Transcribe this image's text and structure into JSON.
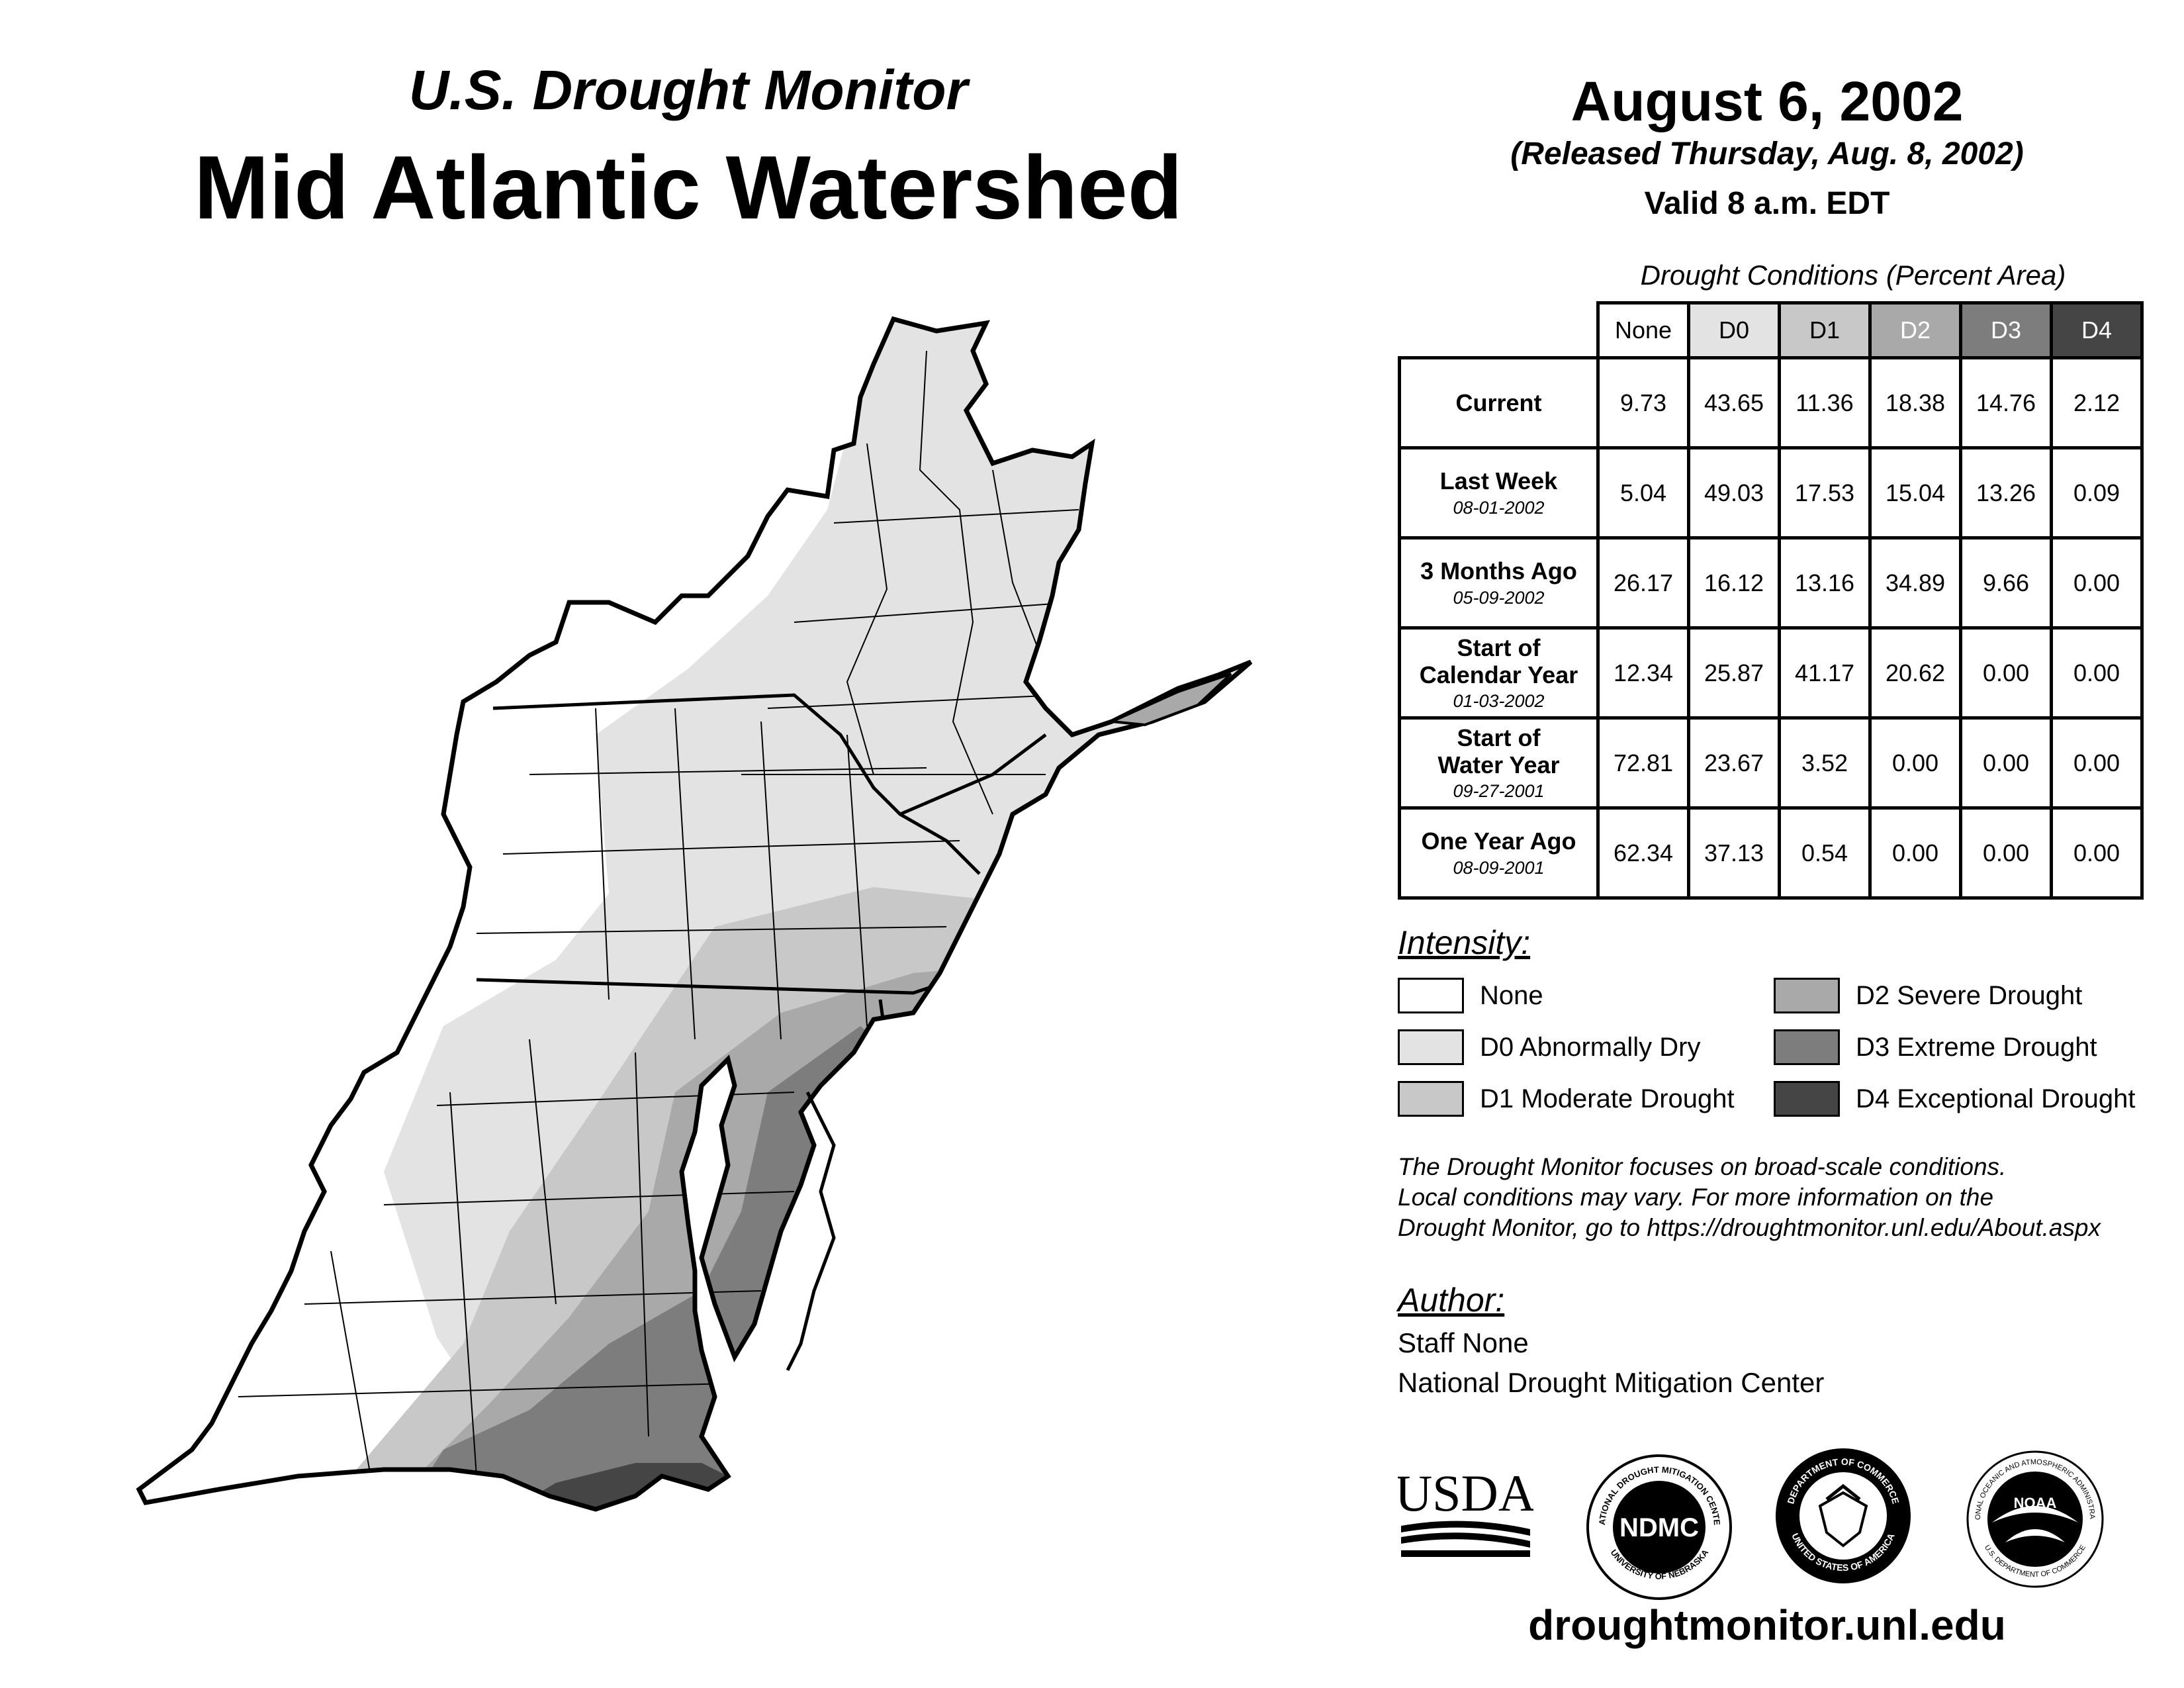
{
  "header": {
    "subtitle": "U.S. Drought Monitor",
    "title": "Mid Atlantic Watershed",
    "date": "August 6, 2002",
    "released": "(Released Thursday, Aug. 8, 2002)",
    "valid": "Valid 8 a.m. EDT"
  },
  "table": {
    "caption": "Drought Conditions (Percent Area)",
    "columns": [
      "None",
      "D0",
      "D1",
      "D2",
      "D3",
      "D4"
    ],
    "rows": [
      {
        "label": "Current",
        "date": "",
        "values": [
          "9.73",
          "43.65",
          "11.36",
          "18.38",
          "14.76",
          "2.12"
        ]
      },
      {
        "label": "Last Week",
        "date": "08-01-2002",
        "values": [
          "5.04",
          "49.03",
          "17.53",
          "15.04",
          "13.26",
          "0.09"
        ]
      },
      {
        "label": "3 Months Ago",
        "date": "05-09-2002",
        "values": [
          "26.17",
          "16.12",
          "13.16",
          "34.89",
          "9.66",
          "0.00"
        ]
      },
      {
        "label": "Start of Calendar Year",
        "date": "01-03-2002",
        "values": [
          "12.34",
          "25.87",
          "41.17",
          "20.62",
          "0.00",
          "0.00"
        ]
      },
      {
        "label": "Start of Water Year",
        "date": "09-27-2001",
        "values": [
          "72.81",
          "23.67",
          "3.52",
          "0.00",
          "0.00",
          "0.00"
        ]
      },
      {
        "label": "One Year Ago",
        "date": "08-09-2001",
        "values": [
          "62.34",
          "37.13",
          "0.54",
          "0.00",
          "0.00",
          "0.00"
        ]
      }
    ]
  },
  "legend": {
    "heading": "Intensity:",
    "items": [
      {
        "label": "None",
        "color": "#ffffff"
      },
      {
        "label": "D0 Abnormally Dry",
        "color": "#e3e3e3"
      },
      {
        "label": "D1 Moderate Drought",
        "color": "#c8c8c8"
      },
      {
        "label": "D2 Severe Drought",
        "color": "#a9a9a9"
      },
      {
        "label": "D3 Extreme Drought",
        "color": "#7d7d7d"
      },
      {
        "label": "D4 Exceptional Drought",
        "color": "#454545"
      }
    ]
  },
  "note": {
    "line1": "The Drought Monitor focuses on broad-scale conditions.",
    "line2": "Local conditions may vary. For more information on the",
    "line3": "Drought Monitor, go to https://droughtmonitor.unl.edu/About.aspx"
  },
  "author": {
    "heading": "Author:",
    "name": "Staff None",
    "org": "National Drought Mitigation Center"
  },
  "logos": {
    "usda": "USDA",
    "ndmc": "NDMC",
    "ndmc_ring_top": "NATIONAL DROUGHT MITIGATION CENTER",
    "ndmc_ring_bottom": "UNIVERSITY OF NEBRASKA",
    "doc_ring_top": "DEPARTMENT OF COMMERCE",
    "doc_ring_bottom": "UNITED STATES OF AMERICA",
    "noaa": "NOAA",
    "noaa_ring_top": "NATIONAL OCEANIC AND ATMOSPHERIC ADMINISTRATION",
    "noaa_ring_bottom": "U.S. DEPARTMENT OF COMMERCE"
  },
  "website": "droughtmonitor.unl.edu"
}
